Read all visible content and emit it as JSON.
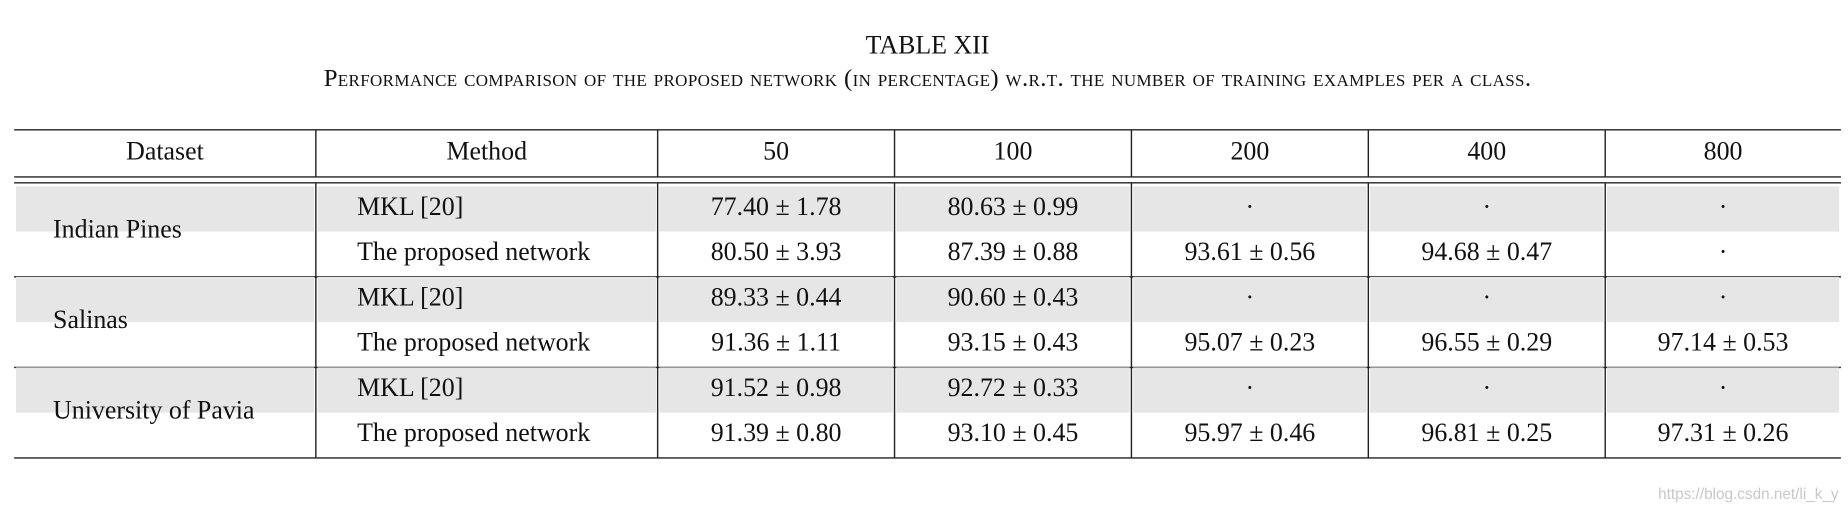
{
  "title": "TABLE XII",
  "caption": "Performance comparison of the proposed network (in percentage) w.r.t. the number of training examples per a class.",
  "table": {
    "header": [
      "Dataset",
      "Method",
      "50",
      "100",
      "200",
      "400",
      "800"
    ],
    "groups": [
      {
        "dataset": "Indian Pines",
        "rows": [
          [
            "MKL [20]",
            "77.40 ± 1.78",
            "80.63 ± 0.99",
            "·",
            "·",
            "·"
          ],
          [
            "The proposed network",
            "80.50 ± 3.93",
            "87.39 ± 0.88",
            "93.61 ± 0.56",
            "94.68 ± 0.47",
            "·"
          ]
        ]
      },
      {
        "dataset": "Salinas",
        "rows": [
          [
            "MKL [20]",
            "89.33 ± 0.44",
            "90.60 ± 0.43",
            "·",
            "·",
            "·"
          ],
          [
            "The proposed network",
            "91.36 ± 1.11",
            "93.15 ± 0.43",
            "95.07 ± 0.23",
            "96.55 ± 0.29",
            "97.14 ± 0.53"
          ]
        ]
      },
      {
        "dataset": "University of Pavia",
        "rows": [
          [
            "MKL [20]",
            "91.52 ± 0.98",
            "92.72 ± 0.33",
            "·",
            "·",
            "·"
          ],
          [
            "The proposed network",
            "91.39 ± 0.80",
            "93.10 ± 0.45",
            "95.97 ± 0.46",
            "96.81 ± 0.25",
            "97.31 ± 0.26"
          ]
        ]
      }
    ]
  },
  "watermark": "https://blog.csdn.net/li_k_y"
}
